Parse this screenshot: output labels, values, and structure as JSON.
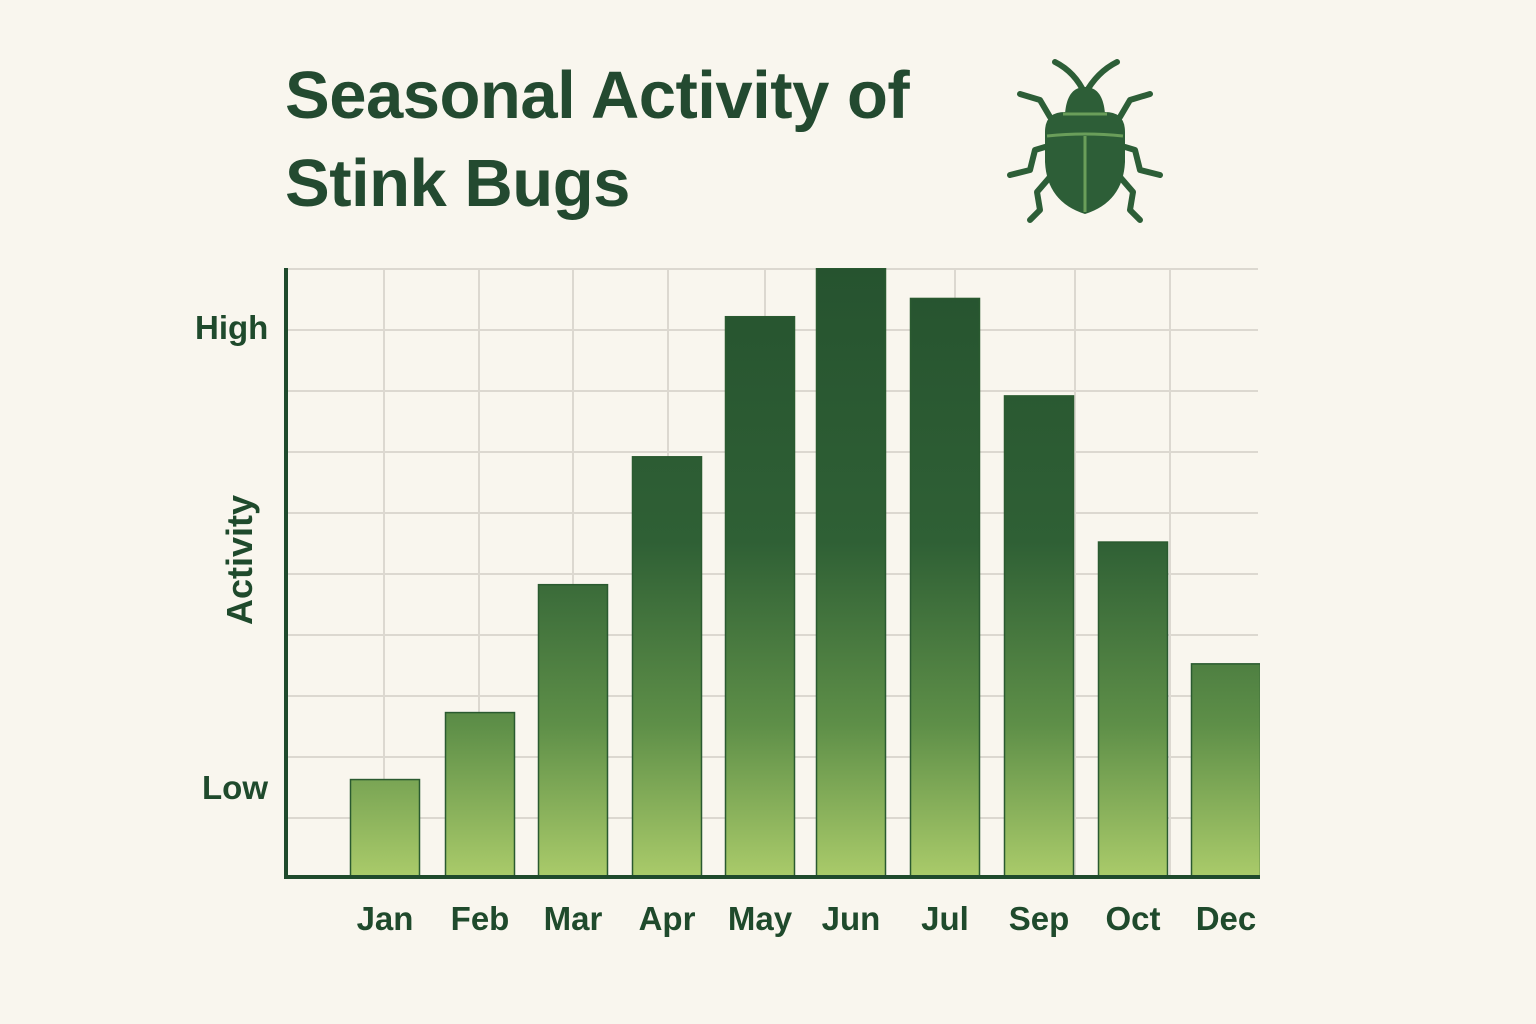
{
  "title": {
    "line1": "Seasonal Activity of",
    "line2": "Stink Bugs"
  },
  "icon": "stink-bug-icon",
  "colors": {
    "background": "#f9f6ee",
    "text": "#234a30",
    "bar_top": "#26532f",
    "bar_bottom": "#aacb6a",
    "grid": "#dcd8d0",
    "axis": "#1f4a2c"
  },
  "y_axis": {
    "title": "Activity",
    "tick_high": "High",
    "tick_low": "Low"
  },
  "chart_data": {
    "type": "bar",
    "title": "Seasonal Activity of Stink Bugs",
    "xlabel": "",
    "ylabel": "Activity",
    "categories": [
      "Jan",
      "Feb",
      "Mar",
      "Apr",
      "May",
      "Jun",
      "Jul",
      "Sep",
      "Oct",
      "Dec"
    ],
    "values": [
      1.6,
      2.7,
      4.8,
      6.9,
      9.2,
      10.0,
      9.5,
      7.9,
      5.5,
      3.5
    ],
    "ylim": [
      0,
      10
    ],
    "y_tick_labels": [
      {
        "label": "Low",
        "value": 1.5
      },
      {
        "label": "High",
        "value": 9.0
      }
    ],
    "grid": true,
    "legend": null,
    "units": "relative activity (qualitative, Low to High)"
  }
}
